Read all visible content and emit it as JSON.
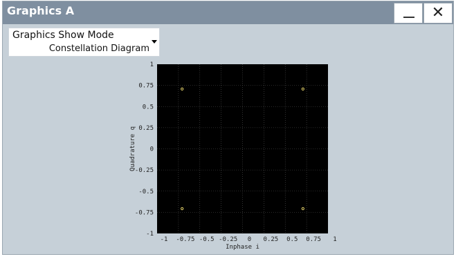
{
  "window": {
    "title": "Graphics A",
    "minimize_glyph": "minimize-icon",
    "close_label": "✕"
  },
  "mode_selector": {
    "label": "Graphics Show Mode",
    "value": "Constellation Diagram"
  },
  "chart_data": {
    "type": "scatter",
    "xlabel": "Inphase i",
    "ylabel": "Quadrature q",
    "xlim": [
      -1,
      1
    ],
    "ylim": [
      -1,
      1
    ],
    "xticks": [
      "-1",
      "-0.75",
      "-0.5",
      "-0.25",
      "0",
      "0.25",
      "0.5",
      "0.75",
      "1"
    ],
    "yticks": [
      "1",
      "0.75",
      "0.5",
      "0.25",
      "0",
      "-0.25",
      "-0.5",
      "-0.75",
      "-1"
    ],
    "xtick_values": [
      -1,
      -0.75,
      -0.5,
      -0.25,
      0,
      0.25,
      0.5,
      0.75,
      1
    ],
    "ytick_values": [
      1,
      0.75,
      0.5,
      0.25,
      0,
      -0.25,
      -0.5,
      -0.75,
      -1
    ],
    "grid": true,
    "points": [
      {
        "x": -0.707,
        "y": 0.707
      },
      {
        "x": 0.707,
        "y": 0.707
      },
      {
        "x": -0.707,
        "y": -0.707
      },
      {
        "x": 0.707,
        "y": -0.707
      }
    ],
    "colors": {
      "background": "#000000",
      "grid": "#555555",
      "point": "#e6d36a"
    }
  }
}
